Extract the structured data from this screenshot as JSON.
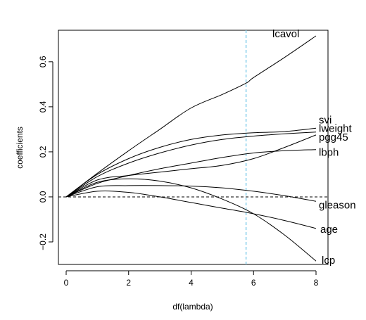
{
  "chart_data": {
    "type": "line",
    "title": "",
    "xlabel": "df(lambda)",
    "ylabel": "coefficients",
    "xlim": [
      0,
      8
    ],
    "ylim": [
      -0.3,
      0.74
    ],
    "xticks": [
      0,
      2,
      4,
      6,
      8
    ],
    "xtick_labels": [
      "0",
      "2",
      "4",
      "6",
      "8"
    ],
    "yticks": [
      -0.2,
      0.0,
      0.2,
      0.4,
      0.6
    ],
    "ytick_labels": [
      "−0.2",
      "0.0",
      "0.2",
      "0.4",
      "0.6"
    ],
    "reference_lines": [
      {
        "orientation": "horizontal",
        "value": 0,
        "style": "dashed",
        "color": "#000000"
      },
      {
        "orientation": "vertical",
        "value": 5.76,
        "style": "dashed",
        "color": "#87ceeb"
      }
    ],
    "grid": false,
    "series": [
      {
        "name": "lcavol",
        "x": [
          0,
          1,
          2,
          3,
          4,
          5,
          5.76,
          6,
          7,
          8
        ],
        "y": [
          0,
          0.105,
          0.205,
          0.3,
          0.395,
          0.455,
          0.505,
          0.53,
          0.62,
          0.715
        ]
      },
      {
        "name": "svi",
        "x": [
          0,
          1,
          2,
          3,
          4,
          5,
          6,
          7,
          8
        ],
        "y": [
          0,
          0.1,
          0.17,
          0.22,
          0.255,
          0.275,
          0.285,
          0.29,
          0.305
        ]
      },
      {
        "name": "lweight",
        "x": [
          0,
          1,
          2,
          3,
          4,
          5,
          6,
          7,
          8
        ],
        "y": [
          0,
          0.09,
          0.15,
          0.195,
          0.23,
          0.255,
          0.27,
          0.28,
          0.288
        ]
      },
      {
        "name": "pgg45",
        "x": [
          0,
          1,
          2,
          3,
          4,
          5,
          6,
          7,
          8
        ],
        "y": [
          0,
          0.075,
          0.095,
          0.11,
          0.125,
          0.14,
          0.17,
          0.22,
          0.275
        ]
      },
      {
        "name": "lbph",
        "x": [
          0,
          1,
          2,
          3,
          4,
          5,
          6,
          7,
          8
        ],
        "y": [
          0,
          0.06,
          0.095,
          0.125,
          0.15,
          0.175,
          0.195,
          0.205,
          0.21
        ]
      },
      {
        "name": "gleason",
        "x": [
          0,
          1,
          2,
          3,
          4,
          5,
          6,
          7,
          8
        ],
        "y": [
          0,
          0.045,
          0.05,
          0.05,
          0.048,
          0.04,
          0.025,
          0.005,
          -0.02
        ]
      },
      {
        "name": "age",
        "x": [
          0,
          1,
          2,
          3,
          4,
          5,
          6,
          7,
          8
        ],
        "y": [
          0,
          0.025,
          0.02,
          0,
          -0.025,
          -0.05,
          -0.075,
          -0.105,
          -0.14
        ]
      },
      {
        "name": "lcp",
        "x": [
          0,
          1,
          2,
          3,
          4,
          5,
          6,
          7,
          8
        ],
        "y": [
          0,
          0.065,
          0.08,
          0.07,
          0.04,
          -0.01,
          -0.075,
          -0.17,
          -0.285
        ]
      }
    ]
  }
}
